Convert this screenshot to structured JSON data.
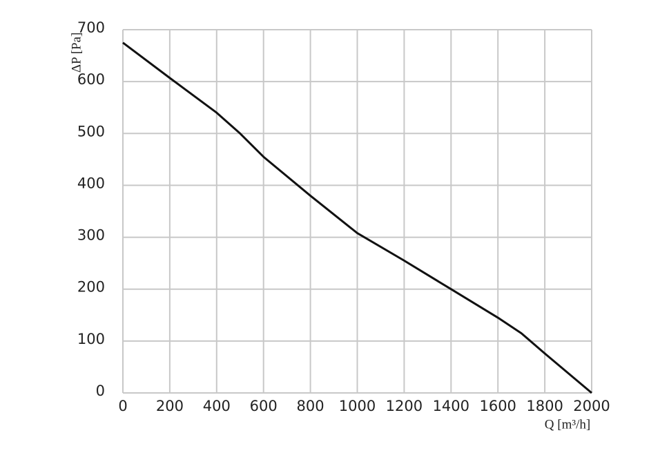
{
  "chart_data": {
    "type": "line",
    "x_label": "Q [m³/h]",
    "y_label": "ΔP [Pa]",
    "x": [
      0,
      200,
      400,
      500,
      600,
      800,
      1000,
      1200,
      1400,
      1600,
      1700,
      1800,
      2000
    ],
    "values": [
      675,
      607,
      540,
      500,
      455,
      380,
      308,
      255,
      200,
      145,
      115,
      76,
      0
    ],
    "color": "#111111",
    "xlim": [
      0,
      2000
    ],
    "xticks": [
      0,
      200,
      400,
      600,
      800,
      1000,
      1200,
      1400,
      1600,
      1800,
      2000
    ],
    "ylim": [
      0,
      700
    ],
    "yticks": [
      0,
      100,
      200,
      300,
      400,
      500,
      600,
      700
    ],
    "grid": true
  }
}
